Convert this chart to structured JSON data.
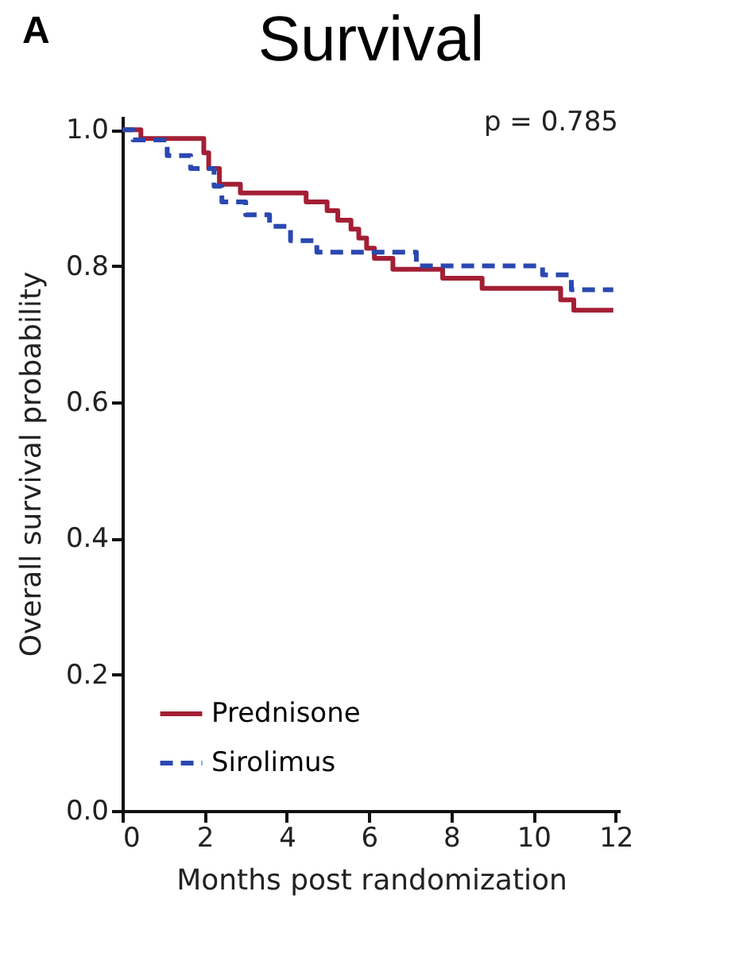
{
  "chart_data": {
    "type": "step",
    "title": "Survival",
    "xlabel": "Months post randomization",
    "ylabel": "Overall survival probability",
    "annotations": [
      "A",
      "p = 0.785"
    ],
    "series": [
      {
        "name": "Prednisone",
        "color": "#a31f34",
        "line_style": "solid",
        "x": [
          0,
          0.45,
          1.98,
          2.1,
          2.36,
          2.87,
          4.47,
          4.98,
          5.24,
          5.56,
          5.75,
          5.94,
          6.13,
          6.58,
          7.79,
          8.75,
          10.66,
          10.98,
          11.94
        ],
        "values": [
          1.0,
          0.987,
          0.966,
          0.943,
          0.92,
          0.907,
          0.894,
          0.881,
          0.867,
          0.854,
          0.841,
          0.826,
          0.811,
          0.795,
          0.782,
          0.767,
          0.75,
          0.735,
          0.735
        ]
      },
      {
        "name": "Sirolimus",
        "color": "#2a48b0",
        "line_style": "dashed",
        "x": [
          0,
          0.26,
          1.09,
          1.66,
          2.23,
          2.42,
          3.0,
          3.58,
          4.09,
          4.73,
          7.15,
          10.22,
          10.92,
          11.94
        ],
        "values": [
          1.0,
          0.985,
          0.962,
          0.943,
          0.917,
          0.894,
          0.875,
          0.858,
          0.837,
          0.82,
          0.8,
          0.787,
          0.765,
          0.765
        ]
      }
    ],
    "xlim": [
      0,
      12.1
    ],
    "xticks": [
      0,
      2,
      4,
      6,
      8,
      10,
      12
    ],
    "ylim": [
      0,
      1.02
    ],
    "yticks": [
      {
        "value": 0,
        "label": "0.0"
      },
      {
        "value": 0.2,
        "label": "0.2"
      },
      {
        "value": 0.4,
        "label": "0.4"
      },
      {
        "value": 0.6,
        "label": "0.6"
      },
      {
        "value": 0.8,
        "label": "0.8"
      },
      {
        "value": 1,
        "label": "1.0"
      }
    ],
    "legend": "bottom left",
    "grid": false,
    "marker": "none"
  }
}
